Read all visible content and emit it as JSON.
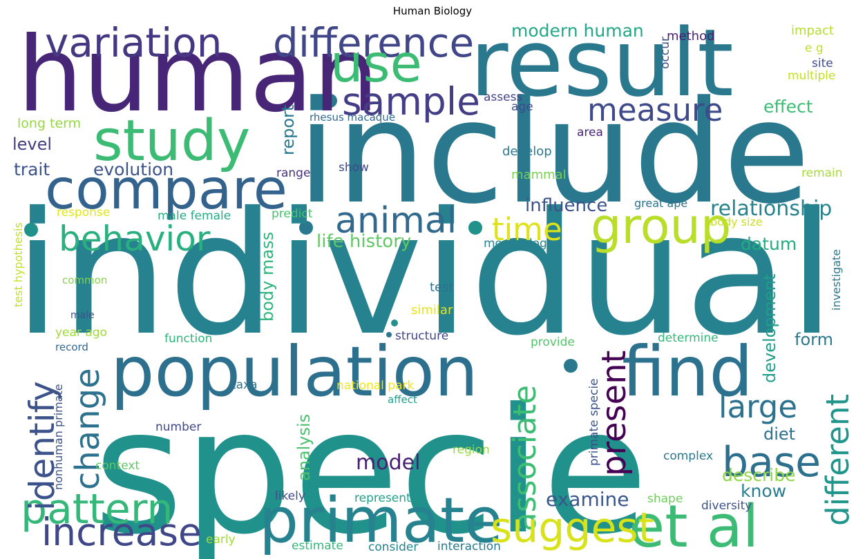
{
  "title": "Human Biology",
  "words": [
    {
      "text": "individual",
      "color": "#26828e"
    },
    {
      "text": "specie",
      "color": "#21918c"
    },
    {
      "text": "include",
      "color": "#2a788e"
    },
    {
      "text": "human",
      "color": "#482677"
    },
    {
      "text": "result",
      "color": "#2a788e"
    },
    {
      "text": "population",
      "color": "#2d708e"
    },
    {
      "text": "primate",
      "color": "#26828e"
    },
    {
      "text": "find",
      "color": "#2c728e"
    },
    {
      "text": "compare",
      "color": "#33638d"
    },
    {
      "text": "study",
      "color": "#3cbb75"
    },
    {
      "text": "variation",
      "color": "#453781"
    },
    {
      "text": "difference",
      "color": "#404688"
    },
    {
      "text": "increase",
      "color": "#3f4788"
    },
    {
      "text": "et al",
      "color": "#3cbb75"
    },
    {
      "text": "group",
      "color": "#b8de29"
    },
    {
      "text": "use",
      "color": "#3cbb75"
    },
    {
      "text": "sample",
      "color": "#433e85"
    },
    {
      "text": "pattern",
      "color": "#35b779"
    },
    {
      "text": "base",
      "color": "#2d708e"
    },
    {
      "text": "behavior",
      "color": "#2ab07f"
    },
    {
      "text": "animal",
      "color": "#31688e"
    },
    {
      "text": "associate",
      "color": "#3dbc74"
    },
    {
      "text": "suggest",
      "color": "#d8e219"
    },
    {
      "text": "measure",
      "color": "#3e4a89"
    },
    {
      "text": "identify",
      "color": "#3b528b"
    },
    {
      "text": "change",
      "color": "#2c728e"
    },
    {
      "text": "present",
      "color": "#440154"
    },
    {
      "text": "different",
      "color": "#1f958b"
    },
    {
      "text": "large",
      "color": "#2c728e"
    },
    {
      "text": "time",
      "color": "#dde318"
    },
    {
      "text": "model",
      "color": "#482173"
    },
    {
      "text": "relationship",
      "color": "#25838e"
    },
    {
      "text": "influence",
      "color": "#3b528b"
    },
    {
      "text": "life history",
      "color": "#5ec962"
    },
    {
      "text": "examine",
      "color": "#39568c"
    },
    {
      "text": "modern human",
      "color": "#22a884"
    },
    {
      "text": "evolution",
      "color": "#3b528b"
    },
    {
      "text": "trait",
      "color": "#3b528b"
    },
    {
      "text": "effect",
      "color": "#3dbc74"
    },
    {
      "text": "datum",
      "color": "#25ab82"
    },
    {
      "text": "describe",
      "color": "#8fd744"
    },
    {
      "text": "know",
      "color": "#287d8e"
    },
    {
      "text": "development",
      "color": "#1f9e89"
    },
    {
      "text": "analysis",
      "color": "#4ac16d"
    },
    {
      "text": "body mass",
      "color": "#2fb47c"
    },
    {
      "text": "form",
      "color": "#2a788e"
    },
    {
      "text": "diet",
      "color": "#2d708e"
    },
    {
      "text": "level",
      "color": "#433d84"
    },
    {
      "text": "report",
      "color": "#2a788e"
    },
    {
      "text": "long term",
      "color": "#95d840"
    },
    {
      "text": "method",
      "color": "#481f70"
    },
    {
      "text": "impact",
      "color": "#b5de2b"
    },
    {
      "text": "e g",
      "color": "#bddf26"
    },
    {
      "text": "site",
      "color": "#3e4c8a"
    },
    {
      "text": "multiple",
      "color": "#c2df23"
    },
    {
      "text": "occur",
      "color": "#3b528b"
    },
    {
      "text": "assess",
      "color": "#414487"
    },
    {
      "text": "age",
      "color": "#3e4989"
    },
    {
      "text": "rhesus macaque",
      "color": "#31688e"
    },
    {
      "text": "area",
      "color": "#482475"
    },
    {
      "text": "develop",
      "color": "#2a788e"
    },
    {
      "text": "show",
      "color": "#3e4989"
    },
    {
      "text": "range",
      "color": "#46307e"
    },
    {
      "text": "mammal",
      "color": "#7ad151"
    },
    {
      "text": "remain",
      "color": "#a5db36"
    },
    {
      "text": "great ape",
      "color": "#2c728e"
    },
    {
      "text": "body size",
      "color": "#c8e020"
    },
    {
      "text": "response",
      "color": "#e2e418"
    },
    {
      "text": "male female",
      "color": "#25ab82"
    },
    {
      "text": "predict",
      "color": "#4ac16d"
    },
    {
      "text": "morphology",
      "color": "#26828e"
    },
    {
      "text": "test hypothesis",
      "color": "#c2df23"
    },
    {
      "text": "common",
      "color": "#84d44b"
    },
    {
      "text": "male",
      "color": "#3b528b"
    },
    {
      "text": "test",
      "color": "#2c728e"
    },
    {
      "text": "similar",
      "color": "#e7e419"
    },
    {
      "text": "investigate",
      "color": "#2a788e"
    },
    {
      "text": "year ago",
      "color": "#a0da39"
    },
    {
      "text": "record",
      "color": "#31688e"
    },
    {
      "text": "function",
      "color": "#2fb47c"
    },
    {
      "text": "structure",
      "color": "#3f4788"
    },
    {
      "text": "provide",
      "color": "#52c569"
    },
    {
      "text": "determine",
      "color": "#35b779"
    },
    {
      "text": "taxa",
      "color": "#2d708e"
    },
    {
      "text": "national park",
      "color": "#f1e51d"
    },
    {
      "text": "primate specie",
      "color": "#3b528b"
    },
    {
      "text": "nonhuman primate",
      "color": "#3b528b"
    },
    {
      "text": "affect",
      "color": "#1f9e89"
    },
    {
      "text": "number",
      "color": "#3f4788"
    },
    {
      "text": "region",
      "color": "#95d840"
    },
    {
      "text": "context",
      "color": "#5ec962"
    },
    {
      "text": "complex",
      "color": "#2a788e"
    },
    {
      "text": "likely",
      "color": "#3e4a89"
    },
    {
      "text": "represent",
      "color": "#1fa088"
    },
    {
      "text": "shape",
      "color": "#6ccd5a"
    },
    {
      "text": "diversity",
      "color": "#3b528b"
    },
    {
      "text": "early",
      "color": "#a0da39"
    },
    {
      "text": "estimate",
      "color": "#35b779"
    },
    {
      "text": "consider",
      "color": "#25838e"
    },
    {
      "text": "interaction",
      "color": "#2a788e"
    }
  ]
}
